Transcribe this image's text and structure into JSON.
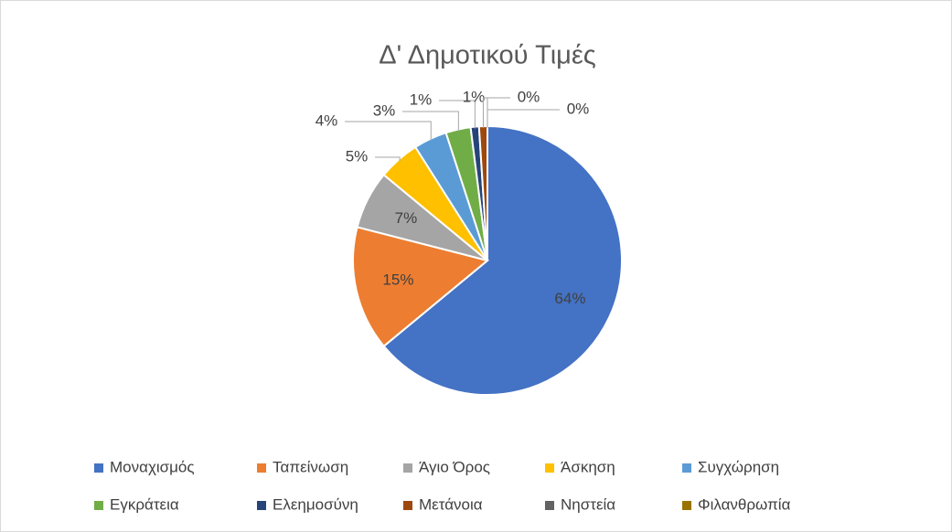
{
  "chart_data": {
    "type": "pie",
    "title": "Δ' Δημοτικού Τιμές",
    "categories": [
      "Μοναχισμός",
      "Ταπείνωση",
      "Άγιο Όρος",
      "Άσκηση",
      "Συγχώρηση",
      "Εγκράτεια",
      "Ελεημοσύνη",
      "Μετάνοια",
      "Νηστεία",
      "Φιλανθρωπία"
    ],
    "values": [
      64,
      15,
      7,
      5,
      4,
      3,
      1,
      1,
      0,
      0
    ],
    "value_labels": [
      "64%",
      "15%",
      "7%",
      "5%",
      "4%",
      "3%",
      "1%",
      "1%",
      "0%",
      "0%"
    ],
    "colors": [
      "#4472c4",
      "#ed7d31",
      "#a5a5a5",
      "#ffc000",
      "#5b9bd5",
      "#70ad47",
      "#264478",
      "#9e480e",
      "#636363",
      "#997300"
    ],
    "legend": "bottom"
  }
}
